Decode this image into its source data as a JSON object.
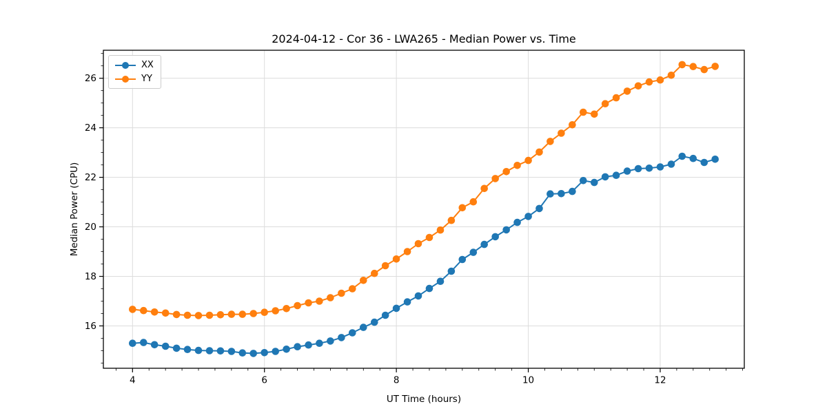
{
  "chart_data": {
    "type": "line",
    "title": "2024-04-12 - Cor 36 - LWA265 - Median Power vs. Time",
    "xlabel": "UT Time (hours)",
    "ylabel": "Median Power (CPU)",
    "xlim": [
      3.558,
      13.275
    ],
    "ylim": [
      14.29,
      27.13
    ],
    "xticks": [
      4,
      6,
      8,
      10,
      12
    ],
    "yticks": [
      16,
      18,
      20,
      22,
      24,
      26
    ],
    "minor_xtick_step": 0.25,
    "minor_ytick_step": 0.5,
    "grid": true,
    "legend_position": "upper left",
    "axis_color": "#000000",
    "grid_color": "#dcdcdc",
    "x": [
      4.0,
      4.167,
      4.333,
      4.5,
      4.667,
      4.833,
      5.0,
      5.167,
      5.333,
      5.5,
      5.667,
      5.833,
      6.0,
      6.167,
      6.333,
      6.5,
      6.667,
      6.833,
      7.0,
      7.167,
      7.333,
      7.5,
      7.667,
      7.833,
      8.0,
      8.167,
      8.333,
      8.5,
      8.667,
      8.833,
      9.0,
      9.167,
      9.333,
      9.5,
      9.667,
      9.833,
      10.0,
      10.167,
      10.333,
      10.5,
      10.667,
      10.833,
      11.0,
      11.167,
      11.333,
      11.5,
      11.667,
      11.833,
      12.0,
      12.167,
      12.333,
      12.5,
      12.667,
      12.833
    ],
    "series": [
      {
        "name": "XX",
        "color": "#1f77b4",
        "values": [
          15.3,
          15.33,
          15.24,
          15.18,
          15.1,
          15.05,
          15.01,
          15.0,
          14.99,
          14.97,
          14.91,
          14.89,
          14.92,
          14.97,
          15.06,
          15.16,
          15.23,
          15.3,
          15.39,
          15.53,
          15.72,
          15.94,
          16.15,
          16.43,
          16.71,
          16.97,
          17.21,
          17.51,
          17.8,
          18.21,
          18.68,
          18.97,
          19.29,
          19.6,
          19.88,
          20.18,
          20.42,
          20.74,
          21.33,
          21.34,
          21.43,
          21.87,
          21.79,
          22.02,
          22.08,
          22.25,
          22.35,
          22.37,
          22.42,
          22.53,
          22.85,
          22.76,
          22.6,
          22.73
        ]
      },
      {
        "name": "YY",
        "color": "#ff7f0e",
        "values": [
          16.67,
          16.62,
          16.56,
          16.52,
          16.46,
          16.43,
          16.42,
          16.43,
          16.45,
          16.47,
          16.47,
          16.5,
          16.55,
          16.61,
          16.7,
          16.82,
          16.93,
          17.0,
          17.14,
          17.32,
          17.5,
          17.84,
          18.12,
          18.43,
          18.7,
          19.0,
          19.32,
          19.57,
          19.87,
          20.26,
          20.77,
          21.01,
          21.55,
          21.95,
          22.23,
          22.48,
          22.68,
          23.02,
          23.45,
          23.78,
          24.12,
          24.63,
          24.55,
          24.97,
          25.21,
          25.48,
          25.69,
          25.85,
          25.93,
          26.12,
          26.55,
          26.47,
          26.35,
          26.48
        ]
      }
    ]
  }
}
